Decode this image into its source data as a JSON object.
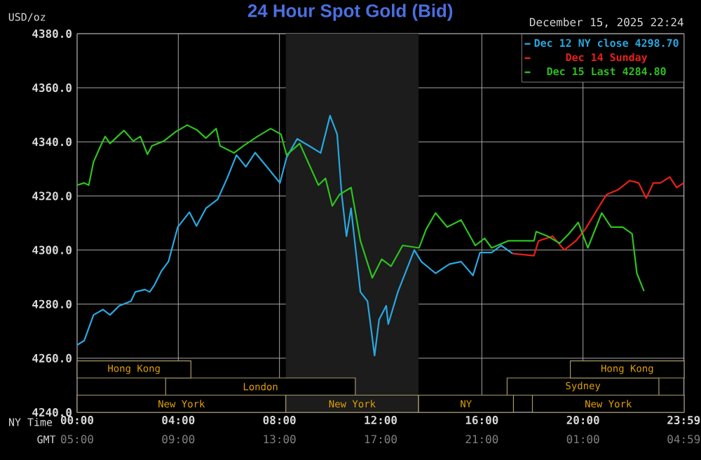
{
  "chart_data": {
    "type": "line",
    "title": "24 Hour Spot Gold (Bid)",
    "ylabel": "USD/oz",
    "xlabel": "NY Time",
    "annotations": [
      "December 15, 2025 22:24",
      "GMT",
      "05:00",
      "09:00",
      "13:00",
      "17:00",
      "21:00",
      "01:00",
      "04:59"
    ],
    "xlim": [
      0,
      24
    ],
    "ylim": [
      4240,
      4380
    ],
    "xticks": [
      {
        "value": 0,
        "label": "00:00"
      },
      {
        "value": 4,
        "label": "04:00"
      },
      {
        "value": 8,
        "label": "08:00"
      },
      {
        "value": 12,
        "label": "12:00"
      },
      {
        "value": 16,
        "label": "16:00"
      },
      {
        "value": 20,
        "label": "20:00"
      },
      {
        "value": 23.98,
        "label": "23:59"
      }
    ],
    "yticks": [
      {
        "value": 4240,
        "label": "4240.0"
      },
      {
        "value": 4260,
        "label": "4260.0"
      },
      {
        "value": 4280,
        "label": "4280.0"
      },
      {
        "value": 4300,
        "label": "4300.0"
      },
      {
        "value": 4320,
        "label": "4320.0"
      },
      {
        "value": 4340,
        "label": "4340.0"
      },
      {
        "value": 4360,
        "label": "4360.0"
      },
      {
        "value": 4380,
        "label": "4380.0"
      }
    ],
    "grid": true,
    "legend": "top right",
    "bands": [
      {
        "axis": "x",
        "from": 0,
        "to": 8.25,
        "label": "New York"
      },
      {
        "axis": "x",
        "from": 8.25,
        "to": 13.5,
        "label": "New York"
      },
      {
        "axis": "x",
        "from": 8.25,
        "to": 13.5,
        "color": "#1c1c1c"
      },
      {
        "axis": "x",
        "from": 13.5,
        "to": 17.25,
        "label": "NY"
      },
      {
        "axis": "x",
        "from": 18,
        "to": 24,
        "label": "New York"
      },
      {
        "axis": "x",
        "from": 3.5,
        "to": 11,
        "label": "London"
      },
      {
        "axis": "x",
        "from": 17,
        "to": 23,
        "label": "Sydney"
      },
      {
        "axis": "x",
        "from": 0,
        "to": 4.5,
        "label": "Hong Kong"
      },
      {
        "axis": "x",
        "from": 19.5,
        "to": 24,
        "label": "Hong Kong"
      }
    ],
    "series": [
      {
        "name": "Dec 12 NY close 4298.70",
        "color": "#29a8e0",
        "x": [
          0,
          0.28,
          0.65,
          1.02,
          1.3,
          1.67,
          2.13,
          2.3,
          2.68,
          2.87,
          3.06,
          3.33,
          3.61,
          3.98,
          4.44,
          4.72,
          5.09,
          5.56,
          5.93,
          6.3,
          6.67,
          7.04,
          7.5,
          8.02,
          8.28,
          8.7,
          9.17,
          9.63,
          10.0,
          10.28,
          10.46,
          10.65,
          10.83,
          11.2,
          11.48,
          11.76,
          11.94,
          12.22,
          12.3,
          12.68,
          13.33,
          13.61,
          14.17,
          14.72,
          15.18,
          15.65,
          15.93,
          16.39,
          16.76,
          17.22
        ],
        "values": [
          4264.9,
          4266.5,
          4276,
          4278,
          4276,
          4279.4,
          4281.1,
          4284.5,
          4285.4,
          4284.5,
          4287.1,
          4292.2,
          4295.7,
          4308.5,
          4314,
          4308.9,
          4315.4,
          4318.8,
          4326.5,
          4335.1,
          4330.8,
          4336,
          4330.8,
          4324.8,
          4334.2,
          4341.1,
          4338.5,
          4335.9,
          4349.7,
          4342.8,
          4320.5,
          4305.1,
          4315.4,
          4284.5,
          4281.1,
          4261,
          4274.3,
          4279.4,
          4272.6,
          4284.5,
          4300,
          4295.7,
          4291.4,
          4294.8,
          4295.7,
          4290.6,
          4299.1,
          4299.1,
          4301.7,
          4298.7
        ]
      },
      {
        "name": "Dec 14 Sunday",
        "color": "#e8201a",
        "x": [
          17.22,
          18.06,
          18.24,
          18.8,
          19.26,
          19.72,
          20.09,
          20.65,
          20.93,
          21.39,
          21.85,
          22.2,
          22.5,
          22.78,
          23.06,
          23.43,
          23.7,
          23.98
        ],
        "values": [
          4298.7,
          4297.9,
          4303.4,
          4305.1,
          4300,
          4303.4,
          4307.7,
          4316.3,
          4320.5,
          4322.3,
          4325.7,
          4324.8,
          4319.2,
          4324.8,
          4324.8,
          4327,
          4323.1,
          4324.8
        ]
      },
      {
        "name": "Dec 15 Last 4284.80",
        "color": "#2ec21e",
        "x": [
          0,
          0.28,
          0.46,
          0.65,
          0.93,
          1.11,
          1.3,
          1.85,
          2.22,
          2.5,
          2.78,
          2.96,
          3.43,
          3.89,
          4.35,
          4.72,
          5.09,
          5.5,
          5.65,
          6.2,
          6.57,
          7.13,
          7.65,
          8.06,
          8.28,
          8.8,
          9.54,
          9.82,
          10.09,
          10.37,
          10.83,
          11.2,
          11.67,
          12.04,
          12.41,
          12.87,
          13.52,
          13.8,
          14.17,
          14.63,
          15.18,
          15.74,
          16.11,
          16.39,
          17.04,
          18.06,
          18.15,
          18.61,
          19.07,
          19.44,
          19.81,
          20.19,
          20.74,
          21.11,
          21.57,
          21.94,
          22.13,
          22.41
        ],
        "values": [
          4324,
          4324.8,
          4324,
          4332.6,
          4338.5,
          4342,
          4339.4,
          4344.2,
          4340.3,
          4342,
          4335.4,
          4338.5,
          4340.3,
          4343.7,
          4346.2,
          4344.5,
          4341.4,
          4344.9,
          4338.5,
          4335.9,
          4338.5,
          4342,
          4344.9,
          4342.8,
          4335.1,
          4339.4,
          4324,
          4326.5,
          4316.3,
          4320.5,
          4323.1,
          4303.4,
          4289.7,
          4296.6,
          4294,
          4301.7,
          4300.8,
          4307.7,
          4313.7,
          4308.5,
          4311.1,
          4301.7,
          4304.3,
          4300.8,
          4303.4,
          4303.4,
          4306.8,
          4305.1,
          4302.5,
          4306,
          4310.2,
          4300.8,
          4313.7,
          4308.5,
          4308.5,
          4306,
          4291.4,
          4284.8
        ]
      }
    ]
  }
}
